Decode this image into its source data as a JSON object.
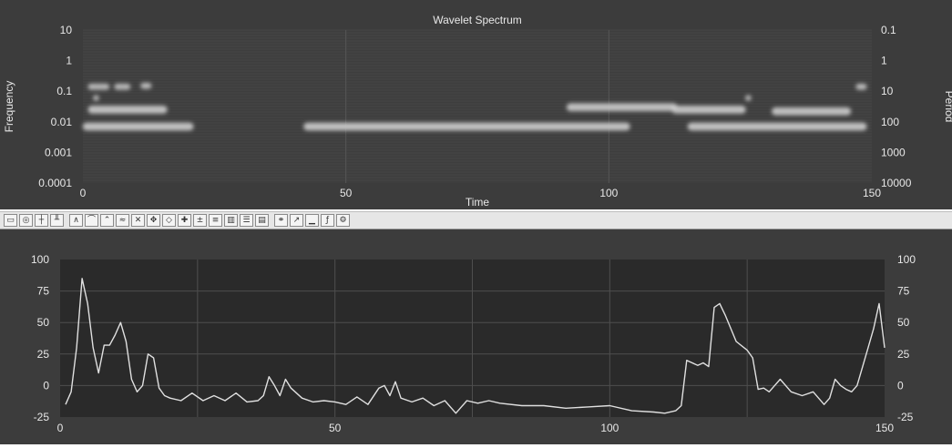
{
  "chart_data": [
    {
      "type": "heatmap",
      "title": "Wavelet Spectrum",
      "xlabel": "Time",
      "ylabel": "Frequency",
      "y2label": "Period",
      "xlim": [
        0,
        150
      ],
      "ylim": [
        0.0001,
        10
      ],
      "yscale": "log",
      "x_ticks": [
        "0",
        "50",
        "100",
        "150"
      ],
      "y_ticks": [
        "10",
        "1",
        "0.1",
        "0.01",
        "0.001",
        "0.0001"
      ],
      "y2_ticks": [
        "0.1",
        "1",
        "10",
        "100",
        "1000",
        "10000"
      ],
      "grid": true,
      "colormap": "grayscale",
      "features": [
        {
          "x0": 0,
          "x1": 21,
          "freq": 0.007
        },
        {
          "x0": 42,
          "x1": 104,
          "freq": 0.007
        },
        {
          "x0": 115,
          "x1": 149,
          "freq": 0.007
        },
        {
          "x0": 1,
          "x1": 16,
          "freq": 0.025
        },
        {
          "x0": 92,
          "x1": 113,
          "freq": 0.03
        },
        {
          "x0": 112,
          "x1": 126,
          "freq": 0.025
        },
        {
          "x0": 131,
          "x1": 146,
          "freq": 0.022
        },
        {
          "x0": 1,
          "x1": 5,
          "freq": 0.14
        },
        {
          "x0": 6,
          "x1": 9,
          "freq": 0.14
        },
        {
          "x0": 11,
          "x1": 13,
          "freq": 0.15
        },
        {
          "x0": 147,
          "x1": 149,
          "freq": 0.14
        },
        {
          "x0": 2,
          "x1": 3,
          "freq": 0.06
        },
        {
          "x0": 126,
          "x1": 127,
          "freq": 0.06
        }
      ]
    },
    {
      "type": "line",
      "xlim": [
        0,
        150
      ],
      "ylim": [
        -25,
        100
      ],
      "x_ticks": [
        "0",
        "50",
        "100",
        "150"
      ],
      "y_ticks": [
        "100",
        "75",
        "50",
        "25",
        "0",
        "-25"
      ],
      "grid": true,
      "color": "#e0e0e0",
      "x": [
        1,
        2,
        3,
        4,
        5,
        6,
        7,
        8,
        9,
        10,
        11,
        12,
        13,
        14,
        15,
        16,
        17,
        18,
        19,
        20,
        22,
        24,
        26,
        28,
        30,
        32,
        34,
        36,
        37,
        38,
        39,
        40,
        41,
        42,
        44,
        46,
        48,
        50,
        52,
        54,
        56,
        58,
        59,
        60,
        61,
        62,
        64,
        66,
        68,
        70,
        72,
        74,
        76,
        78,
        80,
        84,
        88,
        92,
        96,
        100,
        104,
        108,
        110,
        112,
        113,
        114,
        116,
        117,
        118,
        119,
        120,
        121,
        123,
        125,
        126,
        127,
        128,
        129,
        131,
        133,
        135,
        137,
        139,
        140,
        141,
        142,
        143,
        144,
        145,
        146,
        147,
        148,
        149,
        150
      ],
      "y": [
        -15,
        -5,
        30,
        85,
        65,
        30,
        10,
        32,
        32,
        40,
        50,
        35,
        5,
        -5,
        0,
        25,
        22,
        -2,
        -8,
        -10,
        -12,
        -6,
        -12,
        -8,
        -12,
        -6,
        -13,
        -12,
        -8,
        7,
        0,
        -8,
        5,
        -2,
        -10,
        -13,
        -12,
        -13,
        -15,
        -9,
        -15,
        -2,
        0,
        -8,
        3,
        -10,
        -13,
        -10,
        -16,
        -12,
        -22,
        -12,
        -14,
        -12,
        -14,
        -16,
        -16,
        -18,
        -17,
        -16,
        -20,
        -21,
        -22,
        -20,
        -16,
        20,
        16,
        18,
        15,
        62,
        65,
        56,
        35,
        28,
        22,
        -3,
        -2,
        -5,
        5,
        -5,
        -8,
        -5,
        -15,
        -10,
        5,
        0,
        -3,
        -5,
        0,
        15,
        30,
        45,
        65,
        30
      ]
    }
  ]
}
